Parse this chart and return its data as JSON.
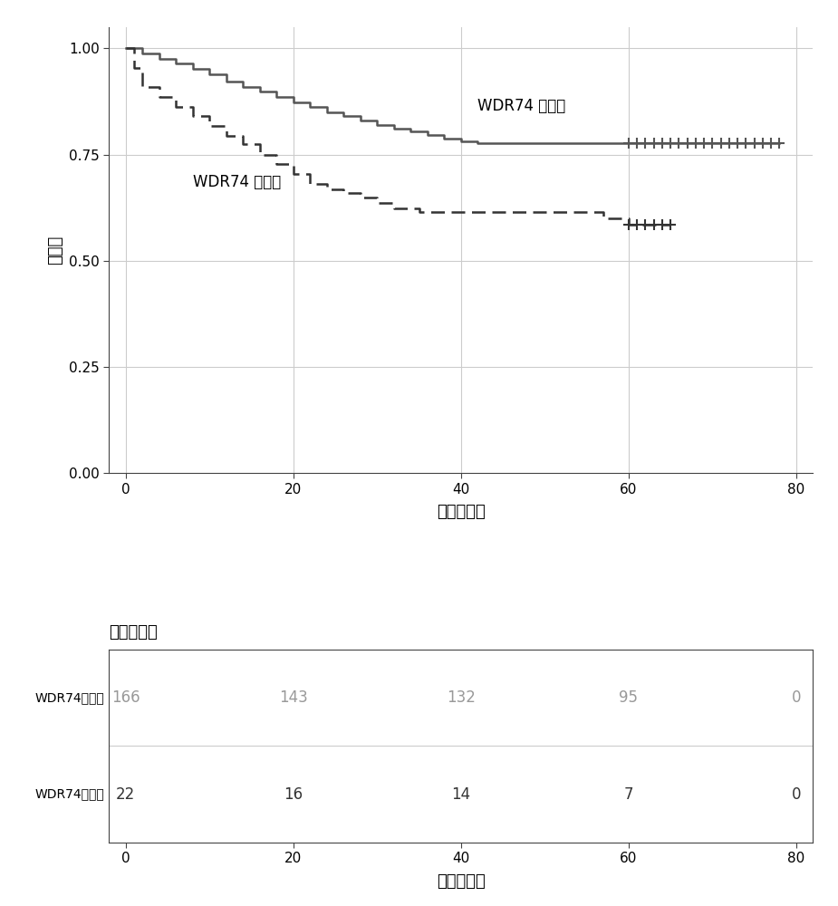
{
  "wt_times": [
    0,
    2,
    4,
    6,
    8,
    10,
    12,
    14,
    16,
    18,
    20,
    22,
    24,
    26,
    28,
    30,
    32,
    34,
    36,
    38,
    40,
    42,
    44,
    46,
    48,
    50,
    52,
    54,
    56,
    58,
    60,
    78
  ],
  "wt_surv": [
    1.0,
    0.988,
    0.976,
    0.964,
    0.952,
    0.94,
    0.922,
    0.91,
    0.898,
    0.886,
    0.874,
    0.862,
    0.85,
    0.84,
    0.83,
    0.82,
    0.812,
    0.804,
    0.796,
    0.788,
    0.782,
    0.778,
    0.778,
    0.778,
    0.778,
    0.778,
    0.778,
    0.778,
    0.778,
    0.778,
    0.778,
    0.778
  ],
  "mut_times": [
    0,
    1,
    2,
    4,
    6,
    8,
    10,
    12,
    14,
    16,
    18,
    20,
    22,
    24,
    26,
    28,
    30,
    32,
    35,
    40,
    42,
    44,
    46,
    50,
    55,
    57,
    60,
    65
  ],
  "mut_surv": [
    1.0,
    0.955,
    0.909,
    0.886,
    0.863,
    0.84,
    0.818,
    0.795,
    0.775,
    0.75,
    0.727,
    0.705,
    0.682,
    0.669,
    0.659,
    0.65,
    0.636,
    0.623,
    0.614,
    0.614,
    0.614,
    0.614,
    0.614,
    0.614,
    0.614,
    0.6,
    0.586,
    0.586
  ],
  "wt_censor_times": [
    60,
    61,
    62,
    63,
    64,
    65,
    66,
    67,
    68,
    69,
    70,
    71,
    72,
    73,
    74,
    75,
    76,
    77,
    78
  ],
  "wt_censor_surv": [
    0.778,
    0.778,
    0.778,
    0.778,
    0.778,
    0.778,
    0.778,
    0.778,
    0.778,
    0.778,
    0.778,
    0.778,
    0.778,
    0.778,
    0.778,
    0.778,
    0.778,
    0.778,
    0.778
  ],
  "mut_censor_times": [
    60,
    61,
    62,
    63,
    64,
    65
  ],
  "mut_censor_surv": [
    0.586,
    0.586,
    0.586,
    0.586,
    0.586,
    0.586
  ],
  "wt_color": "#555555",
  "mut_color": "#333333",
  "xlabel": "时间（月）",
  "ylabel": "生存率",
  "label_wt": "WDR74 野生型",
  "label_mut": "WDR74 突变型",
  "table_title": "样本数量：",
  "table_row1_label": "WDR74野生型",
  "table_row2_label": "WDR74突变型",
  "table_times": [
    0,
    20,
    40,
    60,
    80
  ],
  "table_wt_counts": [
    166,
    143,
    132,
    95,
    0
  ],
  "table_mut_counts": [
    22,
    16,
    14,
    7,
    0
  ],
  "ylim": [
    0.0,
    1.05
  ],
  "xlim": [
    -2,
    82
  ],
  "yticks": [
    0.0,
    0.25,
    0.5,
    0.75,
    1.0
  ],
  "xticks": [
    0,
    20,
    40,
    60,
    80
  ],
  "background_color": "#ffffff",
  "grid_color": "#cccccc",
  "linewidth": 1.8,
  "fontsize_label": 13,
  "fontsize_tick": 11,
  "fontsize_annot": 12,
  "fontsize_table_title": 13,
  "fontsize_table_label": 10,
  "fontsize_table_count": 12
}
